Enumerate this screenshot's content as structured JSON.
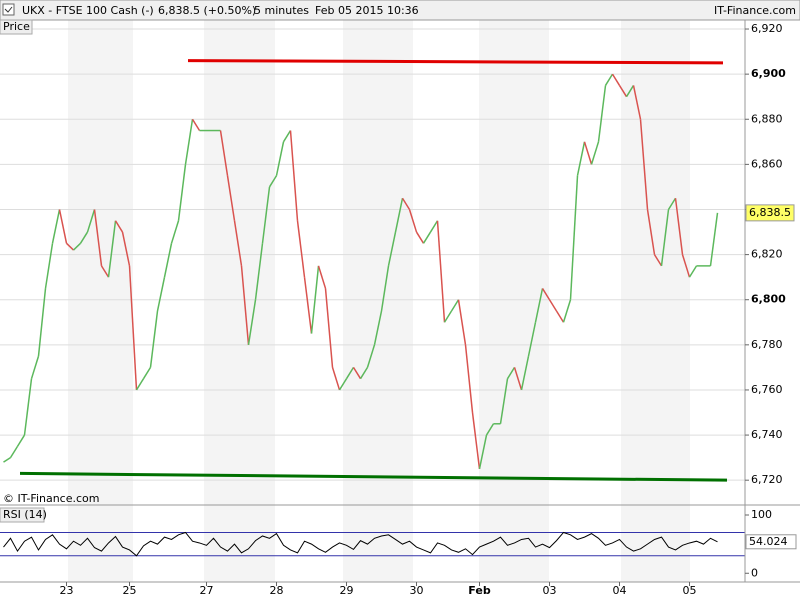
{
  "header": {
    "symbol": "UKX - FTSE 100 Cash (-)",
    "quote": "6,838.5 (+0.50%)",
    "interval": "5 minutes",
    "timestamp": "Feb 05 2015 10:36",
    "site": "IT-Finance.com",
    "watermark": "© IT-Finance.com"
  },
  "chart_data": [
    {
      "type": "line",
      "categories": [
        null,
        null,
        null,
        null,
        null,
        null,
        null,
        null,
        null,
        "23",
        null,
        null,
        null,
        null,
        null,
        null,
        null,
        null,
        "25",
        null,
        null,
        null,
        null,
        null,
        null,
        null,
        null,
        null,
        null,
        "27",
        null,
        null,
        null,
        null,
        null,
        null,
        null,
        null,
        null,
        "28",
        null,
        null,
        null,
        null,
        null,
        null,
        null,
        null,
        null,
        "29",
        null,
        null,
        null,
        null,
        null,
        null,
        null,
        null,
        null,
        "30",
        null,
        null,
        null,
        null,
        null,
        null,
        null,
        null,
        "Feb",
        null,
        null,
        null,
        null,
        null,
        null,
        null,
        null,
        null,
        "03",
        null,
        null,
        null,
        null,
        null,
        null,
        null,
        null,
        null,
        "04",
        null,
        null,
        null,
        null,
        null,
        null,
        null,
        null,
        null,
        "05",
        null,
        null,
        null,
        null
      ],
      "series": [
        {
          "name": "Price",
          "color": "#5cb85c",
          "down_color": "#d9534f",
          "values": [
            6728,
            6730,
            6735,
            6740,
            6765,
            6775,
            6805,
            6825,
            6840,
            6825,
            6822,
            6825,
            6830,
            6840,
            6815,
            6810,
            6835,
            6830,
            6815,
            6760,
            6765,
            6770,
            6795,
            6810,
            6825,
            6835,
            6860,
            6880,
            6875,
            6875,
            6875,
            6875,
            6855,
            6835,
            6815,
            6780,
            6800,
            6825,
            6850,
            6855,
            6870,
            6875,
            6835,
            6810,
            6785,
            6815,
            6805,
            6770,
            6760,
            6765,
            6770,
            6765,
            6770,
            6780,
            6795,
            6815,
            6830,
            6845,
            6840,
            6830,
            6825,
            6830,
            6835,
            6790,
            6795,
            6800,
            6780,
            6750,
            6725,
            6740,
            6745,
            6745,
            6765,
            6770,
            6760,
            6775,
            6790,
            6805,
            6800,
            6795,
            6790,
            6800,
            6855,
            6870,
            6860,
            6870,
            6895,
            6900,
            6895,
            6890,
            6895,
            6880,
            6840,
            6820,
            6815,
            6840,
            6845,
            6820,
            6810,
            6815,
            6815,
            6815,
            6838.5
          ]
        }
      ],
      "last_price": {
        "value": 6838.5,
        "label": "6,838.5"
      },
      "trendlines": [
        {
          "color": "#e00000",
          "values": [
            6906,
            6905
          ]
        },
        {
          "color": "#007000",
          "values": [
            6723,
            6720
          ]
        }
      ],
      "ylim": [
        6709,
        6924
      ],
      "yticks": [
        {
          "value": 6720,
          "label": "6,720"
        },
        {
          "value": 6740,
          "label": "6,740"
        },
        {
          "value": 6760,
          "label": "6,760"
        },
        {
          "value": 6780,
          "label": "6,780"
        },
        {
          "value": 6800,
          "label": "6,800"
        },
        {
          "value": 6820,
          "label": "6,820"
        },
        {
          "value": 6840,
          "label": "6,840"
        },
        {
          "value": 6860,
          "label": "6,860"
        },
        {
          "value": 6880,
          "label": "6,880"
        },
        {
          "value": 6900,
          "label": "6,900"
        },
        {
          "value": 6920,
          "label": "6,920"
        }
      ],
      "grid": true
    },
    {
      "type": "line",
      "series": [
        {
          "name": "RSI (14)",
          "color": "#000000",
          "values": [
            45,
            60,
            38,
            55,
            62,
            40,
            58,
            66,
            50,
            42,
            55,
            48,
            60,
            44,
            38,
            52,
            63,
            45,
            40,
            30,
            47,
            55,
            50,
            62,
            58,
            66,
            70,
            55,
            52,
            48,
            60,
            45,
            38,
            50,
            35,
            42,
            56,
            64,
            60,
            68,
            48,
            40,
            35,
            55,
            50,
            42,
            36,
            45,
            52,
            48,
            41,
            56,
            50,
            60,
            64,
            66,
            58,
            50,
            55,
            45,
            40,
            35,
            52,
            48,
            40,
            36,
            42,
            32,
            45,
            50,
            55,
            62,
            48,
            52,
            58,
            60,
            45,
            50,
            44,
            56,
            70,
            66,
            58,
            62,
            68,
            60,
            48,
            52,
            58,
            45,
            38,
            42,
            50,
            58,
            62,
            45,
            40,
            48,
            52,
            55,
            50,
            60,
            54.024
          ]
        }
      ],
      "levels": [
        30,
        70
      ],
      "level_color": "#3333aa",
      "ylim": [
        -15,
        112
      ],
      "yticks": [
        0,
        100
      ]
    }
  ]
}
